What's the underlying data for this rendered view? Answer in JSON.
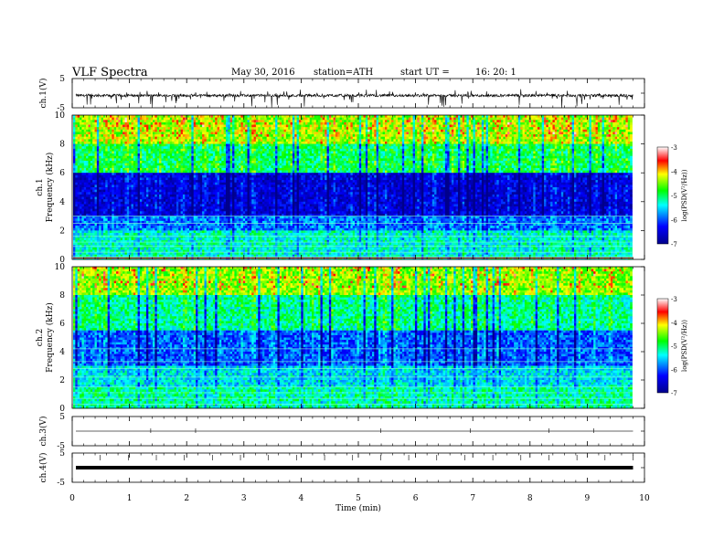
{
  "header": {
    "title": "VLF  Spectra",
    "date": "May 30, 2016",
    "station": "station=ATH",
    "start_label": "start  UT  =",
    "start_time": "16: 20: 1"
  },
  "chart_data": [
    {
      "type": "line",
      "panel": "ch1-waveform",
      "ylabel": "ch.1(V)",
      "ylim": [
        -5,
        5
      ],
      "yticks": [
        "5",
        "-5"
      ],
      "baseline": -0.8,
      "xlim": [
        0,
        10
      ]
    },
    {
      "type": "heatmap",
      "panel": "ch1-spectrogram",
      "ylabel_top": "ch.1",
      "ylabel": "Frequency  (kHz)",
      "ylim": [
        0,
        10
      ],
      "yticks": [
        "0",
        "2",
        "4",
        "6",
        "8",
        "10"
      ],
      "xlim": [
        0,
        9.8
      ],
      "colorbar": {
        "label": "log(PSD(V²/Hz))",
        "range": [
          -7,
          -3
        ],
        "ticks": [
          "-3",
          "-4",
          "-5",
          "-6",
          "-7"
        ]
      }
    },
    {
      "type": "heatmap",
      "panel": "ch2-spectrogram",
      "ylabel_top": "ch.2",
      "ylabel": "Frequency  (kHz)",
      "ylim": [
        0,
        10
      ],
      "yticks": [
        "0",
        "2",
        "4",
        "6",
        "8",
        "10"
      ],
      "xlim": [
        0,
        9.8
      ],
      "colorbar": {
        "label": "log(PSD(V²/Hz))",
        "range": [
          -7,
          -3
        ],
        "ticks": [
          "-3",
          "-4",
          "-5",
          "-6",
          "-7"
        ]
      }
    },
    {
      "type": "line",
      "panel": "ch3-waveform",
      "ylabel": "ch.3(V)",
      "ylim": [
        -5,
        5
      ],
      "yticks": [
        "5",
        "-5"
      ],
      "baseline": 0
    },
    {
      "type": "line",
      "panel": "ch4-waveform",
      "ylabel": "ch.4(V)",
      "ylim": [
        -5,
        5
      ],
      "yticks": [
        "5",
        "-5"
      ],
      "baseline": 0,
      "xlabel": "Time  (min)",
      "xticks": [
        "0",
        "1",
        "2",
        "3",
        "4",
        "5",
        "6",
        "7",
        "8",
        "9",
        "10"
      ]
    }
  ]
}
